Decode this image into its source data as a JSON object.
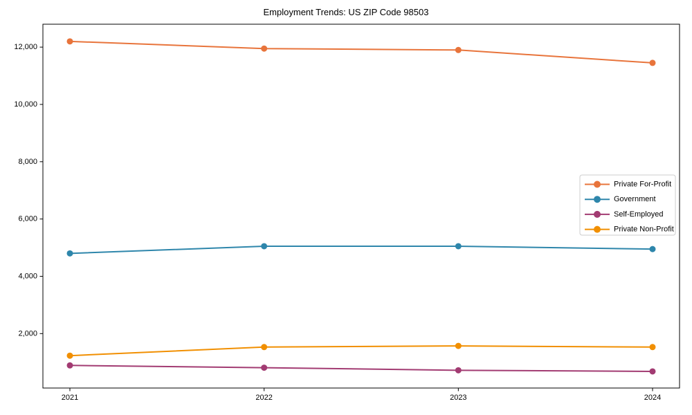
{
  "figure": {
    "background": "#ffffff",
    "border_color": "#000000"
  },
  "chart_data": {
    "type": "line",
    "title": "Employment Trends: US ZIP Code 98503",
    "xlabel": "",
    "ylabel": "",
    "x": [
      2021,
      2022,
      2023,
      2024
    ],
    "x_tick_labels": [
      "2021",
      "2022",
      "2023",
      "2024"
    ],
    "series": [
      {
        "name": "Private For-Profit",
        "color": "#E8743B",
        "values": [
          12200,
          11950,
          11900,
          11450
        ]
      },
      {
        "name": "Government",
        "color": "#2E86AB",
        "values": [
          4800,
          5050,
          5050,
          4950
        ]
      },
      {
        "name": "Self-Employed",
        "color": "#A23B72",
        "values": [
          890,
          810,
          720,
          680
        ]
      },
      {
        "name": "Private Non-Profit",
        "color": "#F18F01",
        "values": [
          1230,
          1530,
          1570,
          1530
        ]
      }
    ],
    "ylim": [
      100,
      12800
    ],
    "yticks": [
      2000,
      4000,
      6000,
      8000,
      10000,
      12000
    ],
    "ytick_labels": [
      "2,000",
      "4,000",
      "6,000",
      "8,000",
      "10,000",
      "12,000"
    ],
    "grid": false,
    "legend": {
      "position": "center right",
      "background": "#ffffff",
      "border_color": "#cccccc"
    }
  }
}
